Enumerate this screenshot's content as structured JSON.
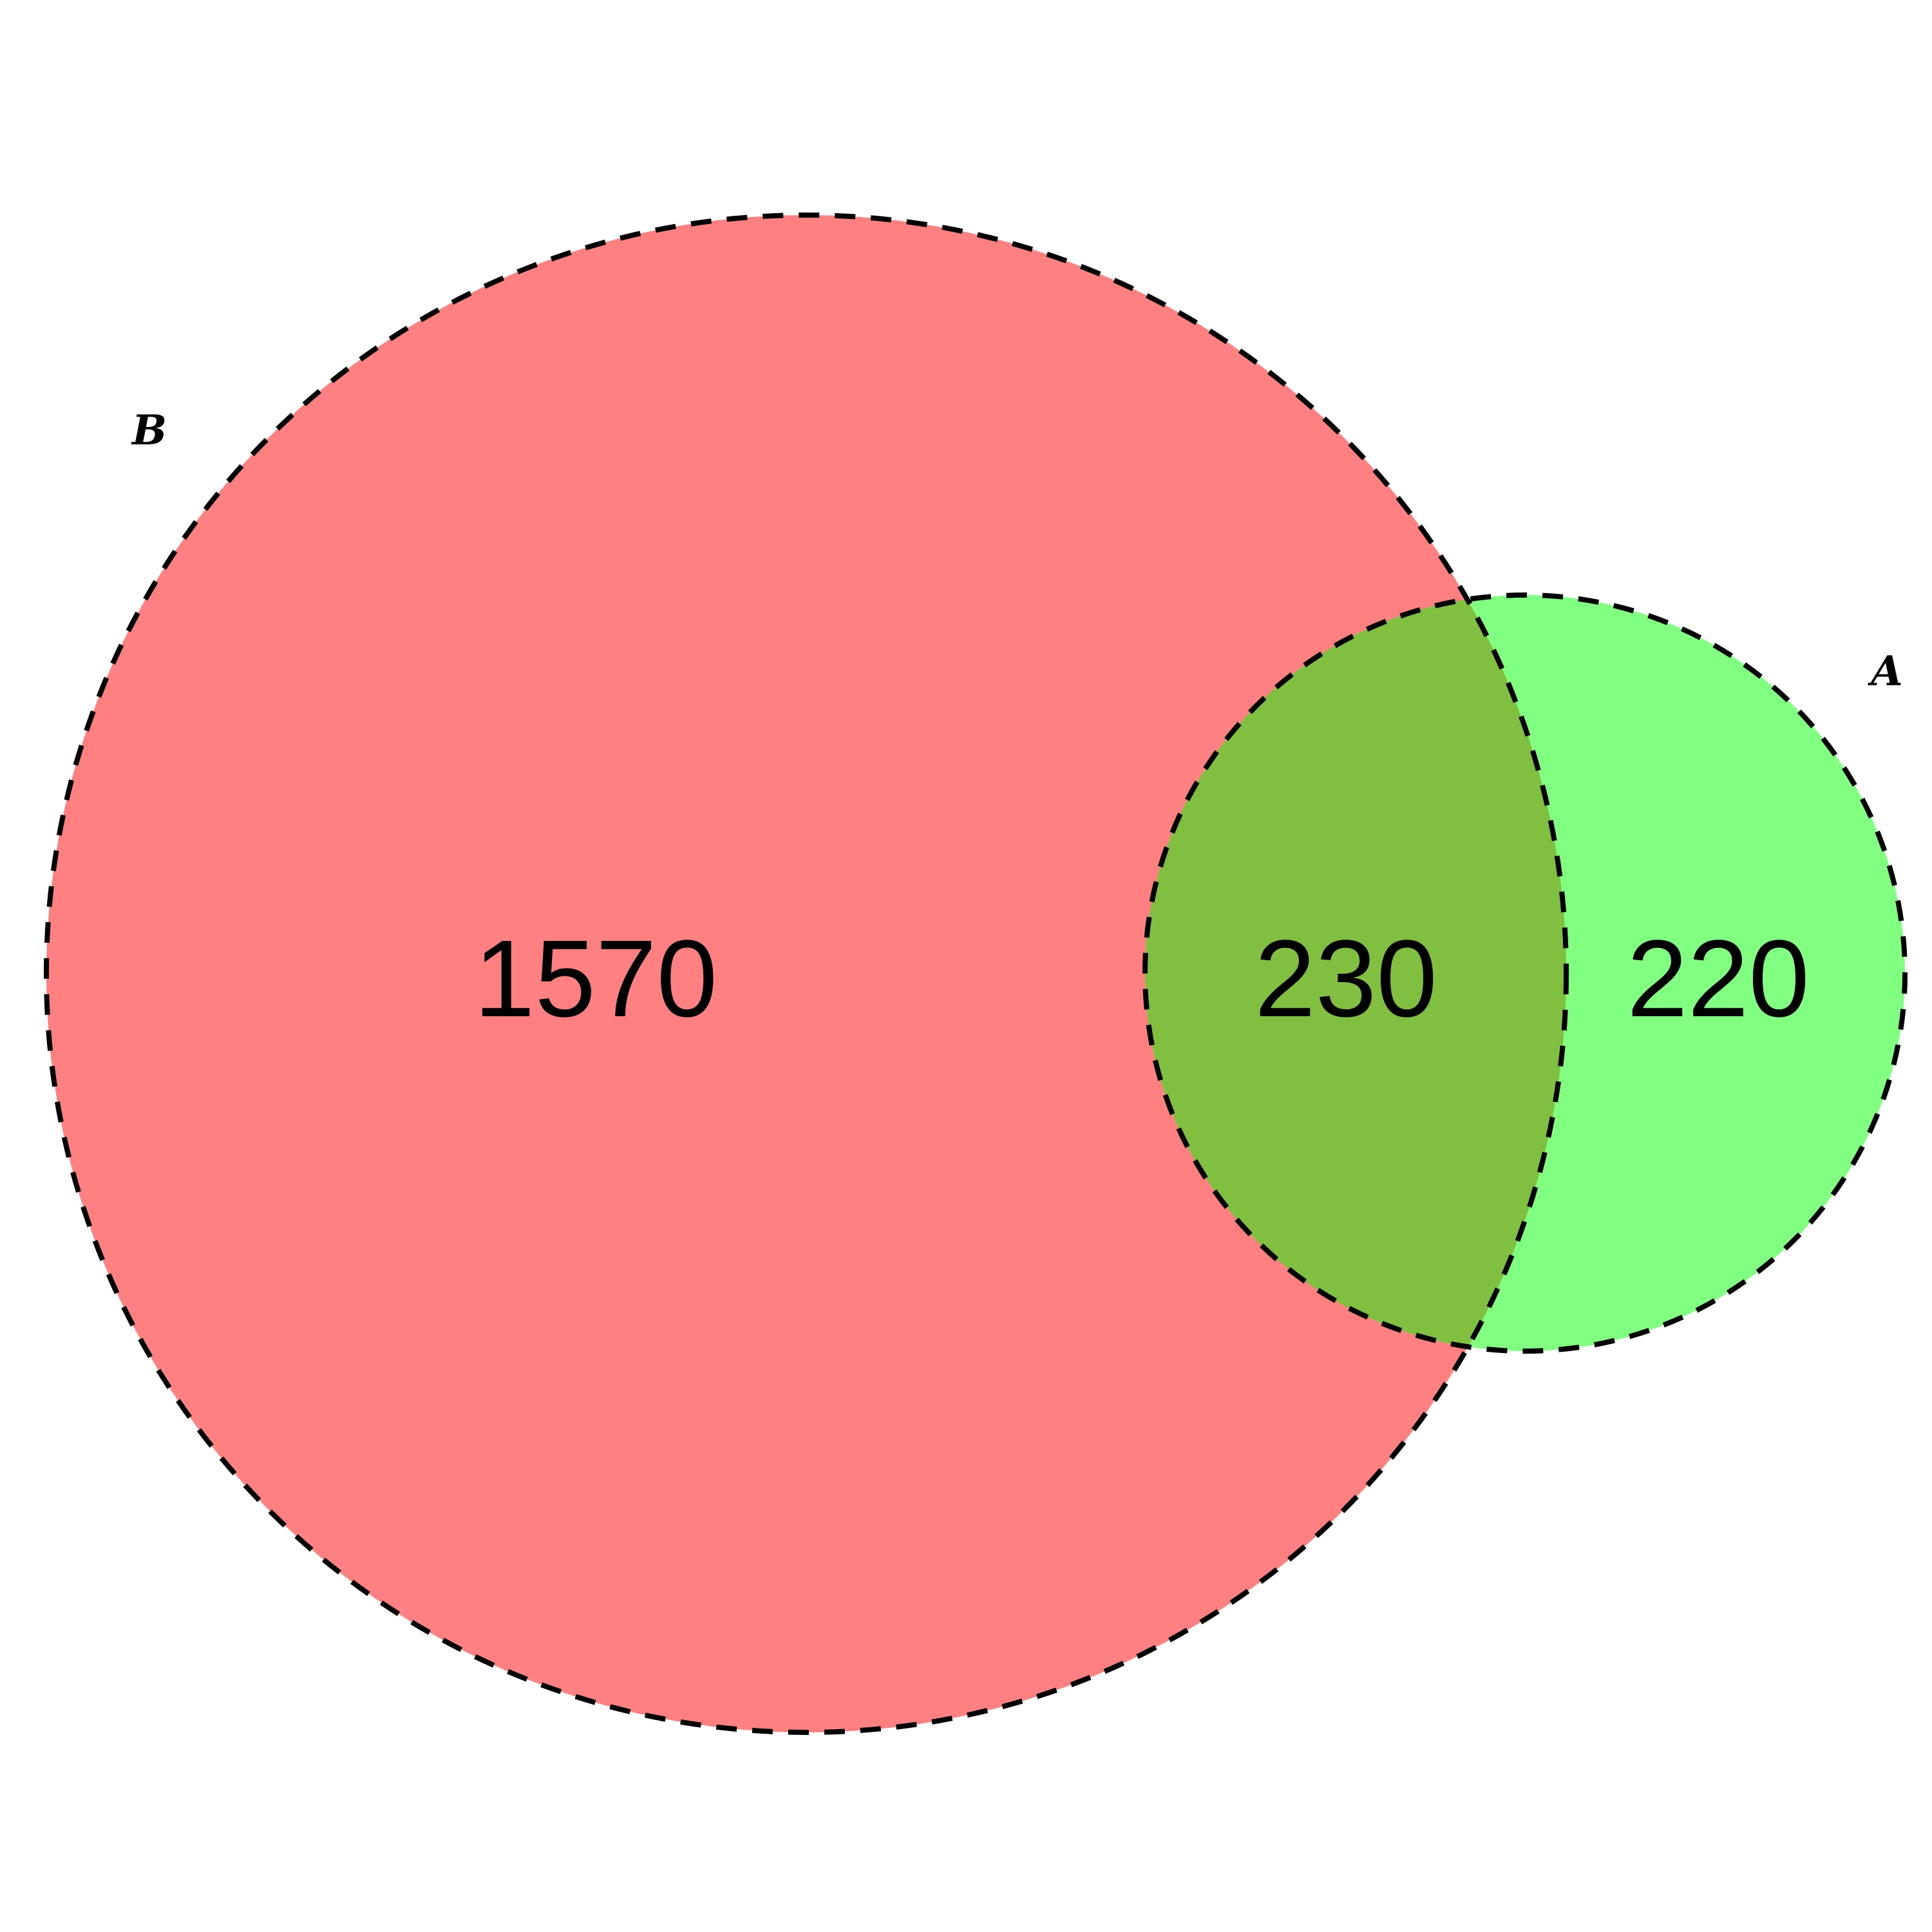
{
  "diagram": {
    "type": "venn",
    "sets": [
      {
        "id": "B",
        "label": "B",
        "color": "#ff8080"
      },
      {
        "id": "A",
        "label": "A",
        "color": "#80ff80"
      }
    ],
    "overlap_color": "#80bf40",
    "outline_color": "#000000",
    "outline_style": "dashed",
    "regions": {
      "b_only": "1570",
      "a_and_b": "230",
      "a_only": "220"
    }
  }
}
